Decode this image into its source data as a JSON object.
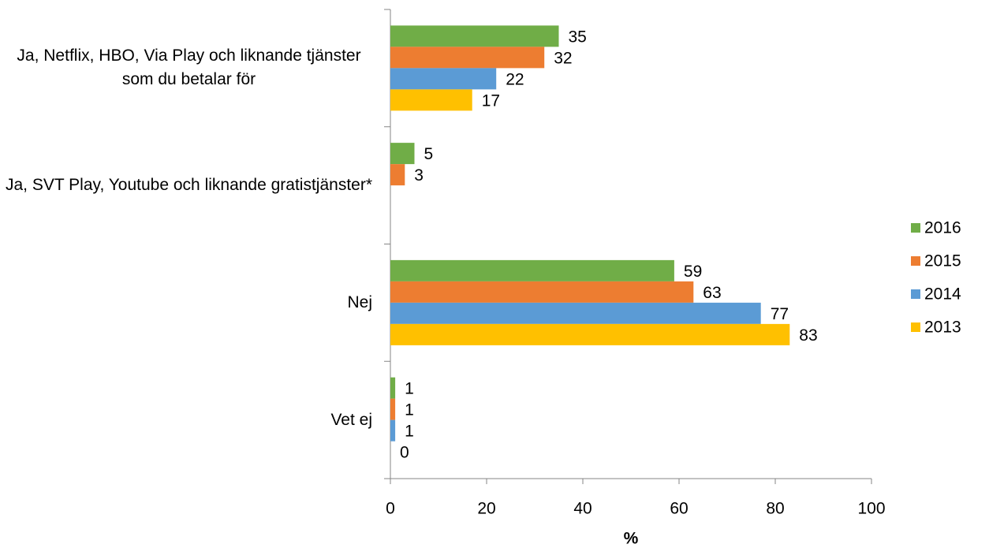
{
  "chart_data": {
    "type": "bar",
    "orientation": "horizontal",
    "categories": [
      "Ja, Netflix, HBO, Via Play och liknande tjänster som du betalar för",
      "Ja, SVT Play, Youtube och liknande gratistjänster*",
      "Nej",
      "Vet ej"
    ],
    "series": [
      {
        "name": "2016",
        "color": "#70ad47",
        "values": [
          35,
          5,
          59,
          1
        ]
      },
      {
        "name": "2015",
        "color": "#ed7d31",
        "values": [
          32,
          3,
          63,
          1
        ]
      },
      {
        "name": "2014",
        "color": "#5b9bd5",
        "values": [
          22,
          null,
          77,
          1
        ]
      },
      {
        "name": "2013",
        "color": "#ffc000",
        "values": [
          17,
          null,
          83,
          0
        ]
      }
    ],
    "xlabel": "%",
    "xlim": [
      0,
      100
    ],
    "xticks": [
      0,
      20,
      40,
      60,
      80,
      100
    ],
    "legend": "right"
  }
}
